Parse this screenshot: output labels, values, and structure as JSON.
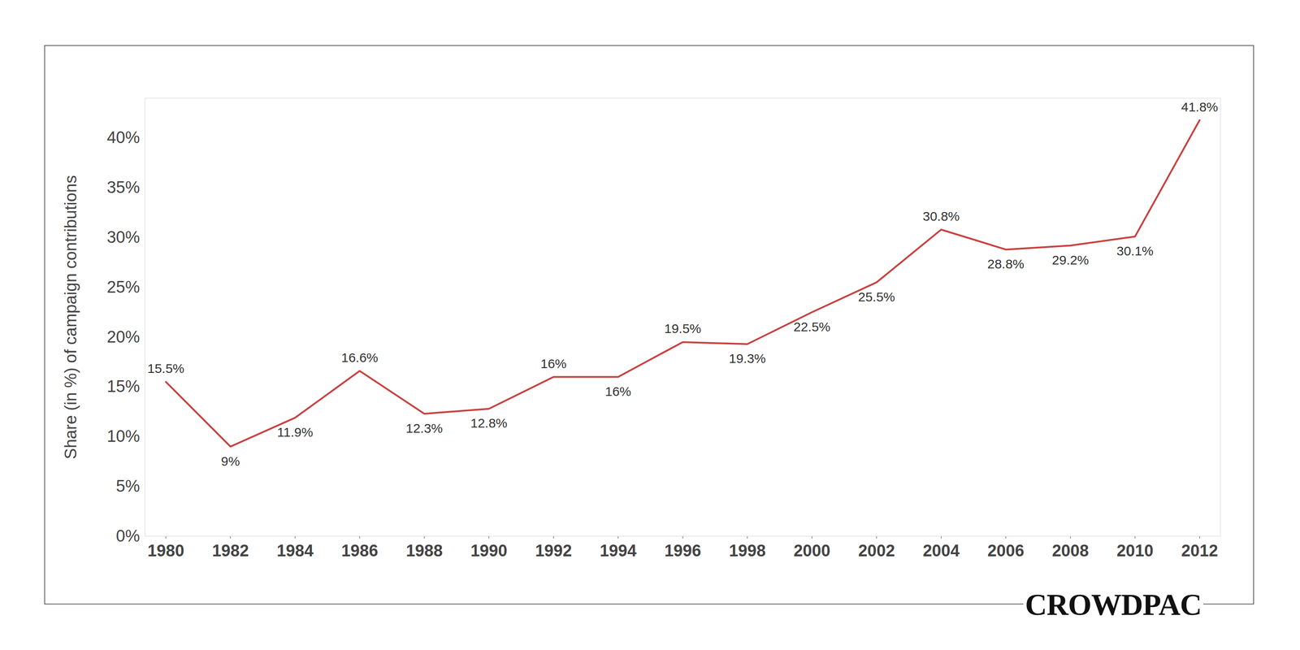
{
  "chart_data": {
    "type": "line",
    "y_label": "Share (in %) of campaign contributions",
    "caption": "CROWDPAC",
    "categories": [
      "1980",
      "1982",
      "1984",
      "1986",
      "1988",
      "1990",
      "1992",
      "1994",
      "1996",
      "1998",
      "2000",
      "2002",
      "2004",
      "2006",
      "2008",
      "2010",
      "2012"
    ],
    "values": [
      15.5,
      9,
      11.9,
      16.6,
      12.3,
      12.8,
      16,
      16,
      19.5,
      19.3,
      22.5,
      25.5,
      30.8,
      28.8,
      29.2,
      30.1,
      41.8
    ],
    "value_labels": [
      "15.5%",
      "9%",
      "11.9%",
      "16.6%",
      "12.3%",
      "12.8%",
      "16%",
      "16%",
      "19.5%",
      "19.3%",
      "22.5%",
      "25.5%",
      "30.8%",
      "28.8%",
      "29.2%",
      "30.1%",
      "41.8%"
    ],
    "data_labels": true,
    "color": "#c9403f",
    "ylim": [
      0,
      44
    ],
    "yticks": [
      {
        "value": 0,
        "label": "0%"
      },
      {
        "value": 5,
        "label": "5%"
      },
      {
        "value": 10,
        "label": "10%"
      },
      {
        "value": 15,
        "label": "15%"
      },
      {
        "value": 20,
        "label": "20%"
      },
      {
        "value": 25,
        "label": "25%"
      },
      {
        "value": 30,
        "label": "30%"
      },
      {
        "value": 35,
        "label": "35%"
      },
      {
        "value": 40,
        "label": "40%"
      }
    ],
    "grid": false
  }
}
